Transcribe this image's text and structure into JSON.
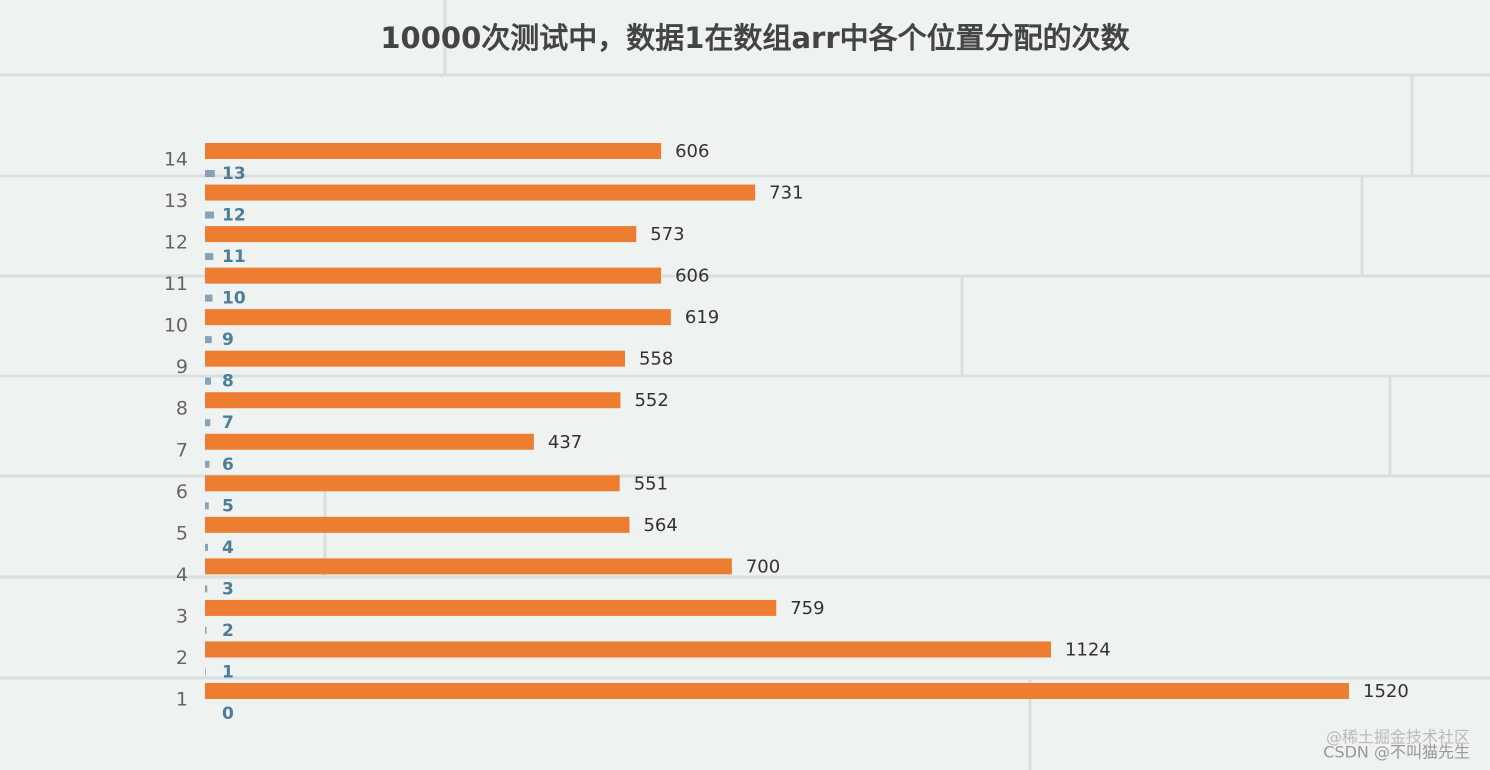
{
  "chart_data": {
    "type": "hbar",
    "title": "10000次测试中，数据1在数组arr中各个位置分配的次数",
    "categories": [
      "1",
      "2",
      "3",
      "4",
      "5",
      "6",
      "7",
      "8",
      "9",
      "10",
      "11",
      "12",
      "13",
      "14"
    ],
    "series": [
      {
        "color": "#ed7d31",
        "values": [
          1520,
          1124,
          759,
          700,
          564,
          551,
          437,
          552,
          558,
          619,
          606,
          573,
          731,
          606
        ]
      },
      {
        "color": "#86a3b8",
        "values": [
          0,
          1,
          2,
          3,
          4,
          5,
          6,
          7,
          8,
          9,
          10,
          11,
          12,
          13
        ]
      }
    ],
    "xlim": [
      0,
      1520
    ],
    "watermark": [
      "@稀土掘金技术社区",
      "CSDN @不叫猫先生"
    ]
  }
}
